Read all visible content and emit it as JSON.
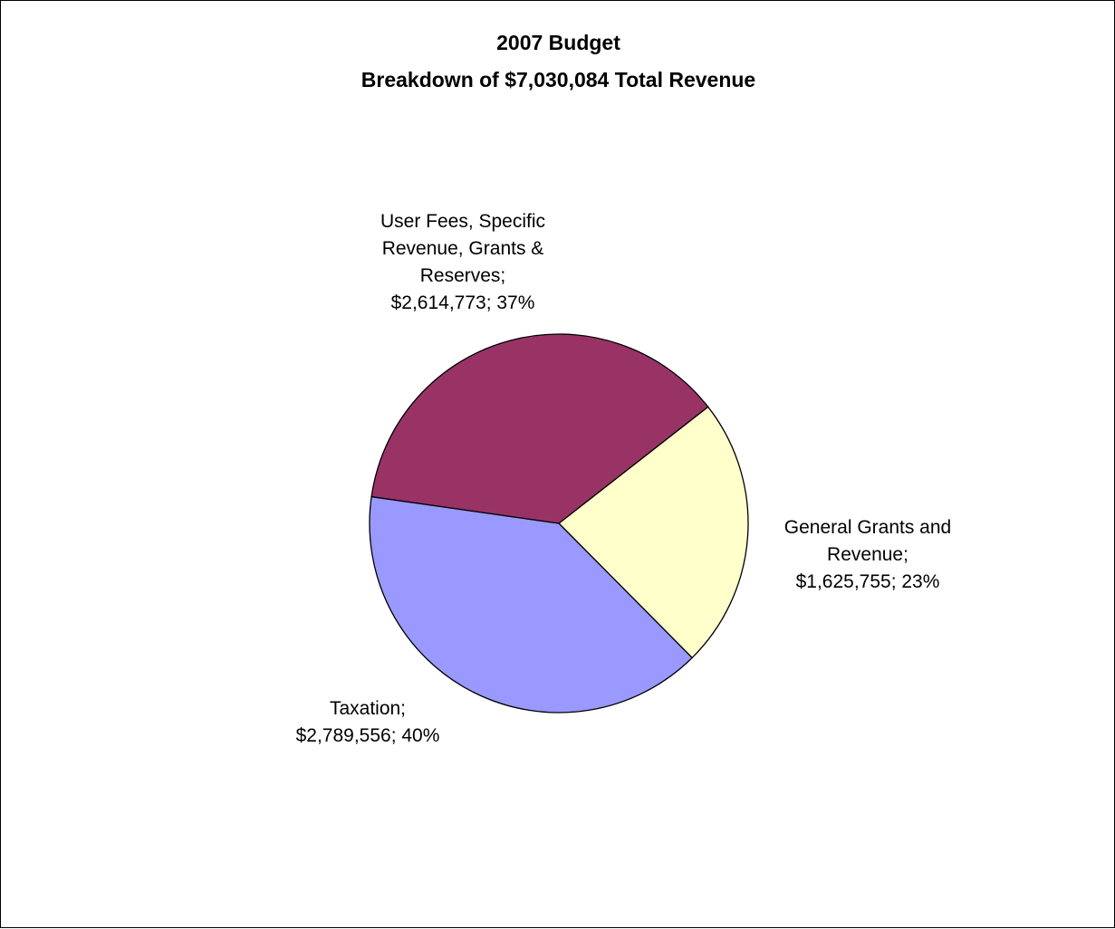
{
  "chart_data": {
    "type": "pie",
    "title": "2007 Budget",
    "subtitle": "Breakdown of $7,030,084 Total Revenue",
    "total": 7030084,
    "slices": [
      {
        "name": "General Grants and Revenue",
        "value": 1625755,
        "percent": 23,
        "color": "#ffffcc",
        "label_lines": [
          "General Grants and",
          "Revenue;",
          "$1,625,755; 23%"
        ]
      },
      {
        "name": "Taxation",
        "value": 2789556,
        "percent": 40,
        "color": "#9999ff",
        "label_lines": [
          "Taxation;",
          "$2,789,556; 40%"
        ]
      },
      {
        "name": "User Fees, Specific Revenue, Grants & Reserves",
        "value": 2614773,
        "percent": 37,
        "color": "#993366",
        "label_lines": [
          "User Fees, Specific",
          "Revenue, Grants &",
          "Reserves;",
          "$2,614,773; 37%"
        ]
      }
    ],
    "legend": "none"
  }
}
